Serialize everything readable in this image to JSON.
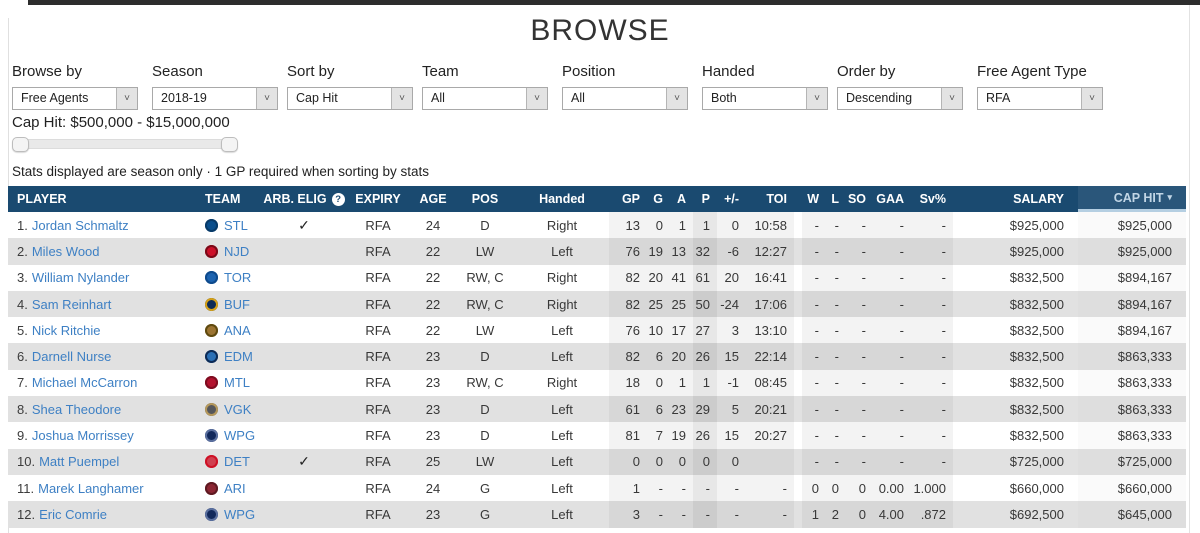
{
  "page": {
    "title": "BROWSE"
  },
  "filters": [
    {
      "label": "Browse by",
      "value": "Free Agents"
    },
    {
      "label": "Season",
      "value": "2018-19"
    },
    {
      "label": "Sort by",
      "value": "Cap Hit"
    },
    {
      "label": "Team",
      "value": "All"
    },
    {
      "label": "Position",
      "value": "All"
    },
    {
      "label": "Handed",
      "value": "Both"
    },
    {
      "label": "Order by",
      "value": "Descending"
    },
    {
      "label": "Free Agent Type",
      "value": "RFA"
    }
  ],
  "cap_hit_filter": {
    "label": "Cap Hit: $500,000 - $15,000,000",
    "min": "$500,000",
    "max": "$15,000,000"
  },
  "note": "Stats displayed are season only · 1 GP required when sorting by stats",
  "colors": {
    "header_bg": "#1a4a70",
    "link": "#3e80c4",
    "alt_row": "#e1e1e1",
    "accent_underline": "#b5cfe2"
  },
  "table": {
    "headers": {
      "player": "PLAYER",
      "team": "TEAM",
      "arb": "ARB. ELIG",
      "arb_help": "?",
      "expiry": "EXPIRY",
      "age": "AGE",
      "pos": "POS",
      "handed": "Handed",
      "gp": "GP",
      "g": "G",
      "a": "A",
      "p": "P",
      "pm": "+/-",
      "toi": "TOI",
      "w": "W",
      "l": "L",
      "so": "SO",
      "gaa": "GAA",
      "sv": "Sv%",
      "salary": "SALARY",
      "caphit": "CAP HIT",
      "sort_caret": "▾",
      "sorted_by": "CAP HIT"
    },
    "rows": [
      {
        "rank": "1.",
        "player": "Jordan Schmaltz",
        "team": "STL",
        "logo": "#0a4e8c",
        "ring": "#083a68",
        "arb": "✓",
        "expiry": "RFA",
        "age": "24",
        "pos": "D",
        "handed": "Right",
        "gp": "13",
        "g": "0",
        "a": "1",
        "p": "1",
        "pm": "0",
        "toi": "10:58",
        "w": "-",
        "l": "-",
        "so": "-",
        "gaa": "-",
        "sv": "-",
        "salary": "$925,000",
        "caphit": "$925,000"
      },
      {
        "rank": "2.",
        "player": "Miles Wood",
        "team": "NJD",
        "logo": "#cc1029",
        "ring": "#7a0a18",
        "arb": "",
        "expiry": "RFA",
        "age": "22",
        "pos": "LW",
        "handed": "Left",
        "gp": "76",
        "g": "19",
        "a": "13",
        "p": "32",
        "pm": "-6",
        "toi": "12:27",
        "w": "-",
        "l": "-",
        "so": "-",
        "gaa": "-",
        "sv": "-",
        "salary": "$925,000",
        "caphit": "$925,000"
      },
      {
        "rank": "3.",
        "player": "William Nylander",
        "team": "TOR",
        "logo": "#1c63b0",
        "ring": "#0e4a8c",
        "arb": "",
        "expiry": "RFA",
        "age": "22",
        "pos": "RW, C",
        "handed": "Right",
        "gp": "82",
        "g": "20",
        "a": "41",
        "p": "61",
        "pm": "20",
        "toi": "16:41",
        "w": "-",
        "l": "-",
        "so": "-",
        "gaa": "-",
        "sv": "-",
        "salary": "$832,500",
        "caphit": "$894,167"
      },
      {
        "rank": "4.",
        "player": "Sam Reinhart",
        "team": "BUF",
        "logo": "#0d2b56",
        "ring": "#d4a018",
        "arb": "",
        "expiry": "RFA",
        "age": "22",
        "pos": "RW, C",
        "handed": "Right",
        "gp": "82",
        "g": "25",
        "a": "25",
        "p": "50",
        "pm": "-24",
        "toi": "17:06",
        "w": "-",
        "l": "-",
        "so": "-",
        "gaa": "-",
        "sv": "-",
        "salary": "$832,500",
        "caphit": "$894,167"
      },
      {
        "rank": "5.",
        "player": "Nick Ritchie",
        "team": "ANA",
        "logo": "#9c7432",
        "ring": "#5f4a10",
        "arb": "",
        "expiry": "RFA",
        "age": "22",
        "pos": "LW",
        "handed": "Left",
        "gp": "76",
        "g": "10",
        "a": "17",
        "p": "27",
        "pm": "3",
        "toi": "13:10",
        "w": "-",
        "l": "-",
        "so": "-",
        "gaa": "-",
        "sv": "-",
        "salary": "$832,500",
        "caphit": "$894,167"
      },
      {
        "rank": "6.",
        "player": "Darnell Nurse",
        "team": "EDM",
        "logo": "#2a6fb5",
        "ring": "#0d2b56",
        "arb": "",
        "expiry": "RFA",
        "age": "23",
        "pos": "D",
        "handed": "Left",
        "gp": "82",
        "g": "6",
        "a": "20",
        "p": "26",
        "pm": "15",
        "toi": "22:14",
        "w": "-",
        "l": "-",
        "so": "-",
        "gaa": "-",
        "sv": "-",
        "salary": "$832,500",
        "caphit": "$863,333"
      },
      {
        "rank": "7.",
        "player": "Michael McCarron",
        "team": "MTL",
        "logo": "#b3122e",
        "ring": "#7d0c20",
        "arb": "",
        "expiry": "RFA",
        "age": "23",
        "pos": "RW, C",
        "handed": "Right",
        "gp": "18",
        "g": "0",
        "a": "1",
        "p": "1",
        "pm": "-1",
        "toi": "08:45",
        "w": "-",
        "l": "-",
        "so": "-",
        "gaa": "-",
        "sv": "-",
        "salary": "$832,500",
        "caphit": "$863,333"
      },
      {
        "rank": "8.",
        "player": "Shea Theodore",
        "team": "VGK",
        "logo": "#55565a",
        "ring": "#b4975a",
        "arb": "",
        "expiry": "RFA",
        "age": "23",
        "pos": "D",
        "handed": "Left",
        "gp": "61",
        "g": "6",
        "a": "23",
        "p": "29",
        "pm": "5",
        "toi": "20:21",
        "w": "-",
        "l": "-",
        "so": "-",
        "gaa": "-",
        "sv": "-",
        "salary": "$832,500",
        "caphit": "$863,333"
      },
      {
        "rank": "9.",
        "player": "Joshua Morrissey",
        "team": "WPG",
        "logo": "#12295b",
        "ring": "#5a6f9e",
        "arb": "",
        "expiry": "RFA",
        "age": "23",
        "pos": "D",
        "handed": "Left",
        "gp": "81",
        "g": "7",
        "a": "19",
        "p": "26",
        "pm": "15",
        "toi": "20:27",
        "w": "-",
        "l": "-",
        "so": "-",
        "gaa": "-",
        "sv": "-",
        "salary": "$832,500",
        "caphit": "$863,333"
      },
      {
        "rank": "10.",
        "player": "Matt Puempel",
        "team": "DET",
        "logo": "#d04050",
        "ring": "#ce1126",
        "arb": "✓",
        "expiry": "RFA",
        "age": "25",
        "pos": "LW",
        "handed": "Left",
        "gp": "0",
        "g": "0",
        "a": "0",
        "p": "0",
        "pm": "0",
        "toi": "",
        "w": "-",
        "l": "-",
        "so": "-",
        "gaa": "-",
        "sv": "-",
        "salary": "$725,000",
        "caphit": "$725,000"
      },
      {
        "rank": "11.",
        "player": "Marek Langhamer",
        "team": "ARI",
        "logo": "#8c2633",
        "ring": "#5e1a22",
        "arb": "",
        "expiry": "RFA",
        "age": "24",
        "pos": "G",
        "handed": "Left",
        "gp": "1",
        "g": "-",
        "a": "-",
        "p": "-",
        "pm": "-",
        "toi": "-",
        "w": "0",
        "l": "0",
        "so": "0",
        "gaa": "0.00",
        "sv": "1.000",
        "salary": "$660,000",
        "caphit": "$660,000"
      },
      {
        "rank": "12.",
        "player": "Eric Comrie",
        "team": "WPG",
        "logo": "#12295b",
        "ring": "#5a6f9e",
        "arb": "",
        "expiry": "RFA",
        "age": "23",
        "pos": "G",
        "handed": "Left",
        "gp": "3",
        "g": "-",
        "a": "-",
        "p": "-",
        "pm": "-",
        "toi": "-",
        "w": "1",
        "l": "2",
        "so": "0",
        "gaa": "4.00",
        "sv": ".872",
        "salary": "$692,500",
        "caphit": "$645,000"
      }
    ]
  }
}
